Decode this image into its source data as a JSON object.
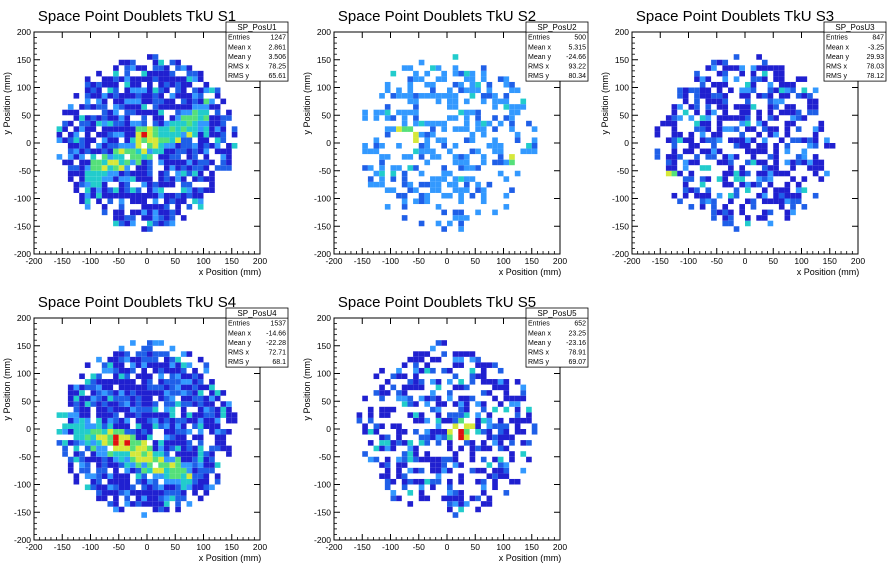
{
  "chart_data": [
    {
      "type": "heatmap",
      "title": "Space Point Doublets TkU S1",
      "xlabel": "x Position (mm)",
      "ylabel": "y Position (mm)",
      "xlim": [
        -200,
        200
      ],
      "ylim": [
        -200,
        200
      ],
      "xticks": [
        -200,
        -150,
        -100,
        -50,
        0,
        50,
        100,
        150,
        200
      ],
      "yticks": [
        -200,
        -150,
        -100,
        -50,
        0,
        50,
        100,
        150,
        200
      ],
      "stats": {
        "name": "SP_PosU1",
        "rows": [
          {
            "label": "Entries",
            "value": "1247"
          },
          {
            "label": "Mean x",
            "value": "2.861"
          },
          {
            "label": "Mean y",
            "value": "3.506"
          },
          {
            "label": "RMS x",
            "value": "78.25"
          },
          {
            "label": "RMS y",
            "value": "65.61"
          }
        ]
      },
      "pattern": {
        "density": 0.82,
        "band": "diagonal-rising",
        "hot": [
          [
            0,
            5
          ],
          [
            -5,
            15
          ]
        ],
        "hot_bins": [
          [
            -5,
            15
          ]
        ]
      }
    },
    {
      "type": "heatmap",
      "title": "Space Point Doublets TkU S2",
      "xlabel": "x Position (mm)",
      "ylabel": "y Position (mm)",
      "xlim": [
        -200,
        200
      ],
      "ylim": [
        -200,
        200
      ],
      "xticks": [
        -200,
        -150,
        -100,
        -50,
        0,
        50,
        100,
        150,
        200
      ],
      "yticks": [
        -200,
        -150,
        -100,
        -50,
        0,
        50,
        100,
        150,
        200
      ],
      "stats": {
        "name": "SP_PosU2",
        "rows": [
          {
            "label": "Entries",
            "value": "500"
          },
          {
            "label": "Mean x",
            "value": "5.315"
          },
          {
            "label": "Mean y",
            "value": "-24.66"
          },
          {
            "label": "RMS x",
            "value": "93.22"
          },
          {
            "label": "RMS y",
            "value": "80.34"
          }
        ]
      },
      "pattern": {
        "density": 0.42,
        "band": "none",
        "hot": [
          [
            130,
            -35
          ],
          [
            -70,
            15
          ]
        ],
        "hot_bins": [
          [
            130,
            -35
          ],
          [
            -70,
            15
          ]
        ]
      }
    },
    {
      "type": "heatmap",
      "title": "Space Point Doublets TkU S3",
      "xlabel": "x Position (mm)",
      "ylabel": "y Position (mm)",
      "xlim": [
        -200,
        200
      ],
      "ylim": [
        -200,
        200
      ],
      "xticks": [
        -200,
        -150,
        -100,
        -50,
        0,
        50,
        100,
        150,
        200
      ],
      "yticks": [
        -200,
        -150,
        -100,
        -50,
        0,
        50,
        100,
        150,
        200
      ],
      "stats": {
        "name": "SP_PosU3",
        "rows": [
          {
            "label": "Entries",
            "value": "847"
          },
          {
            "label": "Mean x",
            "value": "-3.25"
          },
          {
            "label": "Mean y",
            "value": "29.93"
          },
          {
            "label": "RMS x",
            "value": "78.03"
          },
          {
            "label": "RMS y",
            "value": "78.12"
          }
        ]
      },
      "pattern": {
        "density": 0.6,
        "band": "none",
        "hot": [
          [
            -140,
            -65
          ]
        ],
        "hot_bins": [
          [
            -140,
            -65
          ]
        ]
      }
    },
    {
      "type": "heatmap",
      "title": "Space Point Doublets TkU S4",
      "xlabel": "x Position (mm)",
      "ylabel": "y Position (mm)",
      "xlim": [
        -200,
        200
      ],
      "ylim": [
        -200,
        200
      ],
      "xticks": [
        -200,
        -150,
        -100,
        -50,
        0,
        50,
        100,
        150,
        200
      ],
      "yticks": [
        -200,
        -150,
        -100,
        -50,
        0,
        50,
        100,
        150,
        200
      ],
      "stats": {
        "name": "SP_PosU4",
        "rows": [
          {
            "label": "Entries",
            "value": "1537"
          },
          {
            "label": "Mean x",
            "value": "-14.66"
          },
          {
            "label": "Mean y",
            "value": "-22.28"
          },
          {
            "label": "RMS x",
            "value": "72.71"
          },
          {
            "label": "RMS y",
            "value": "68.1"
          }
        ]
      },
      "pattern": {
        "density": 0.85,
        "band": "diagonal-falling",
        "hot": [
          [
            -55,
            -20
          ],
          [
            -35,
            -25
          ],
          [
            -10,
            -40
          ]
        ],
        "hot_bins": [
          [
            -55,
            -20
          ],
          [
            -35,
            -25
          ]
        ]
      }
    },
    {
      "type": "heatmap",
      "title": "Space Point Doublets TkU S5",
      "xlabel": "x Position (mm)",
      "ylabel": "y Position (mm)",
      "xlim": [
        -200,
        200
      ],
      "ylim": [
        -200,
        200
      ],
      "xticks": [
        -200,
        -150,
        -100,
        -50,
        0,
        50,
        100,
        150,
        200
      ],
      "yticks": [
        -200,
        -150,
        -100,
        -50,
        0,
        50,
        100,
        150,
        200
      ],
      "stats": {
        "name": "SP_PosU5",
        "rows": [
          {
            "label": "Entries",
            "value": "652"
          },
          {
            "label": "Mean x",
            "value": "23.25"
          },
          {
            "label": "Mean y",
            "value": "-23.16"
          },
          {
            "label": "RMS x",
            "value": "78.91"
          },
          {
            "label": "RMS y",
            "value": "69.07"
          }
        ]
      },
      "pattern": {
        "density": 0.5,
        "band": "none",
        "hot": [
          [
            20,
            -10
          ],
          [
            30,
            0
          ]
        ],
        "hot_bins": [
          [
            20,
            -10
          ]
        ]
      }
    }
  ],
  "colors": {
    "background": "#ffffff",
    "frame": "#000000",
    "palette": [
      "#2020d0",
      "#1f5fe8",
      "#3399ff",
      "#22cccc",
      "#55e07a",
      "#d6e83a",
      "#ff6a1a",
      "#e01010"
    ]
  }
}
